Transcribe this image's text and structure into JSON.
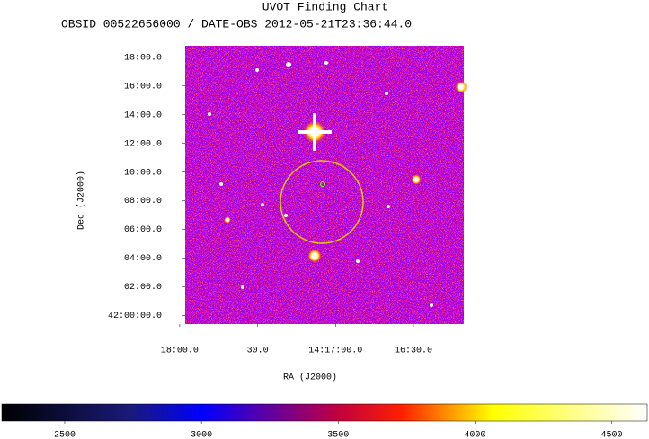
{
  "chart_data": {
    "type": "image",
    "title": "UVOT Finding Chart",
    "subtitle": "OBSID 00522656000 / DATE-OBS 2012-05-21T23:36:44.0",
    "x_label": "RA (J2000)",
    "y_label": "Dec (J2000)",
    "xlim": [
      117.9,
      10.6
    ],
    "xticks": [
      {
        "value": 120,
        "label": "18:00.0"
      },
      {
        "value": 90,
        "label": "30.0"
      },
      {
        "value": 60,
        "label": "14:17:00.0"
      },
      {
        "value": 30,
        "label": "16:30.0"
      }
    ],
    "ylim": [
      -0.6,
      18.8
    ],
    "yticks": [
      {
        "value": 18,
        "label": "18:00.0"
      },
      {
        "value": 16,
        "label": "16:00.0"
      },
      {
        "value": 14,
        "label": "14:00.0"
      },
      {
        "value": 12,
        "label": "12:00.0"
      },
      {
        "value": 10,
        "label": "10:00.0"
      },
      {
        "value": 8,
        "label": "08:00.0"
      },
      {
        "value": 6,
        "label": "06:00.0"
      },
      {
        "value": 4,
        "label": "04:00.0"
      },
      {
        "value": 2,
        "label": "02:00.0"
      },
      {
        "value": 0,
        "label": "42:00:00.0"
      }
    ],
    "colorbar": {
      "lim": [
        2270,
        4630
      ],
      "ticks": [
        2500,
        3000,
        3500,
        4000,
        4500
      ]
    }
  }
}
